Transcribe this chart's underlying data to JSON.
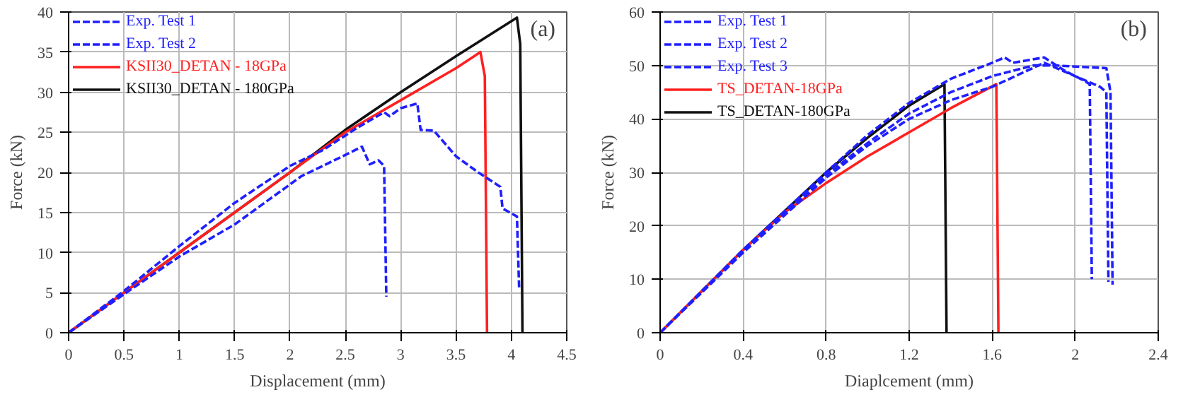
{
  "chart_data": [
    {
      "type": "line",
      "xlabel": "Displacement (mm)",
      "ylabel": "Force (kN)",
      "annotations": [
        "(a)"
      ],
      "xlim": [
        0,
        4.5
      ],
      "xticks": [
        0,
        0.5,
        1,
        1.5,
        2,
        2.5,
        3,
        3.5,
        4,
        4.5
      ],
      "ylim": [
        0,
        40
      ],
      "yticks": [
        0,
        5,
        10,
        15,
        20,
        25,
        30,
        35,
        40
      ],
      "grid": true,
      "legend": "top left",
      "series": [
        {
          "name": "Exp. Test 1",
          "color": "#1f1fff",
          "line_style": "dashed",
          "x": [
            0,
            0.5,
            1,
            1.5,
            2,
            2.3,
            2.6,
            2.85,
            2.9,
            3.0,
            3.15,
            3.18,
            3.3,
            3.5,
            3.7,
            3.9,
            3.92,
            4.05,
            4.07
          ],
          "values": [
            0,
            5.2,
            10.8,
            16.2,
            20.8,
            22.8,
            25.5,
            27.5,
            27,
            28,
            28.6,
            25.3,
            25.2,
            22,
            20,
            18.2,
            15.5,
            14.5,
            5.5
          ]
        },
        {
          "name": "Exp. Test 2",
          "color": "#1f1fff",
          "line_style": "dashed",
          "x": [
            0,
            0.5,
            1,
            1.5,
            1.75,
            2.1,
            2.4,
            2.65,
            2.72,
            2.8,
            2.85,
            2.87
          ],
          "values": [
            0,
            4.8,
            9.5,
            13.5,
            16,
            19.5,
            21.5,
            23.2,
            21,
            21.5,
            20.8,
            4.5
          ]
        },
        {
          "name": "KSII30_DETAN - 18GPa",
          "color": "#ff2020",
          "line_style": "solid",
          "x": [
            0,
            1,
            2,
            2.5,
            3,
            3.5,
            3.72,
            3.76,
            3.78
          ],
          "values": [
            0,
            10,
            20,
            25,
            29,
            33,
            35,
            32,
            0
          ]
        },
        {
          "name": "KSII30_DETAN - 180GPa",
          "color": "#111111",
          "line_style": "solid",
          "x": [
            0,
            1,
            2,
            2.5,
            3,
            3.5,
            4.05,
            4.08,
            4.1
          ],
          "values": [
            0,
            10,
            20,
            25.3,
            30,
            34.5,
            39.3,
            36,
            0
          ]
        }
      ]
    },
    {
      "type": "line",
      "xlabel": "Diaplcement (mm)",
      "ylabel": "Force (kN)",
      "annotations": [
        "(b)"
      ],
      "xlim": [
        0,
        2.4
      ],
      "xticks": [
        0,
        0.4,
        0.8,
        1.2,
        1.6,
        2,
        2.4
      ],
      "ylim": [
        0,
        60
      ],
      "yticks": [
        0,
        10,
        20,
        30,
        40,
        50,
        60
      ],
      "grid": true,
      "legend": "top left",
      "series": [
        {
          "name": "Exp. Test 1",
          "color": "#1f1fff",
          "line_style": "dashed",
          "x": [
            0,
            0.4,
            0.8,
            1.0,
            1.2,
            1.4,
            1.6,
            1.66,
            1.7,
            1.85,
            1.95,
            2.05,
            2.07,
            2.08
          ],
          "values": [
            0,
            15.5,
            30,
            37,
            43,
            47.5,
            50.5,
            51.5,
            50.5,
            51.5,
            49,
            47,
            46.5,
            10
          ]
        },
        {
          "name": "Exp. Test 2",
          "color": "#1f1fff",
          "line_style": "dashed",
          "x": [
            0,
            0.4,
            0.8,
            1.0,
            1.2,
            1.4,
            1.6,
            1.8,
            1.9,
            2.15,
            2.17,
            2.18
          ],
          "values": [
            0,
            15.5,
            29.5,
            35.5,
            41,
            45,
            48,
            50,
            50,
            49.5,
            45,
            9
          ]
        },
        {
          "name": "Exp. Test 3",
          "color": "#1f1fff",
          "line_style": "dashed",
          "x": [
            0,
            0.4,
            0.8,
            1.0,
            1.2,
            1.4,
            1.6,
            1.85,
            2.0,
            2.12,
            2.15,
            2.16
          ],
          "values": [
            0,
            15,
            29,
            35,
            40,
            43.5,
            46,
            50.5,
            48,
            46,
            45,
            9.5
          ]
        },
        {
          "name": "TS_DETAN-18GPa",
          "color": "#ff2020",
          "line_style": "solid",
          "x": [
            0,
            0.4,
            0.6,
            0.8,
            1.0,
            1.2,
            1.4,
            1.62,
            1.63
          ],
          "values": [
            0,
            15.5,
            22.5,
            28,
            33,
            37.5,
            42,
            46.5,
            0
          ]
        },
        {
          "name": "TS_DETAN-180GPa",
          "color": "#111111",
          "line_style": "solid",
          "x": [
            0,
            0.4,
            0.8,
            1.0,
            1.2,
            1.37,
            1.38
          ],
          "values": [
            0,
            15.5,
            30,
            36.5,
            42.5,
            46.5,
            0
          ]
        }
      ]
    }
  ]
}
